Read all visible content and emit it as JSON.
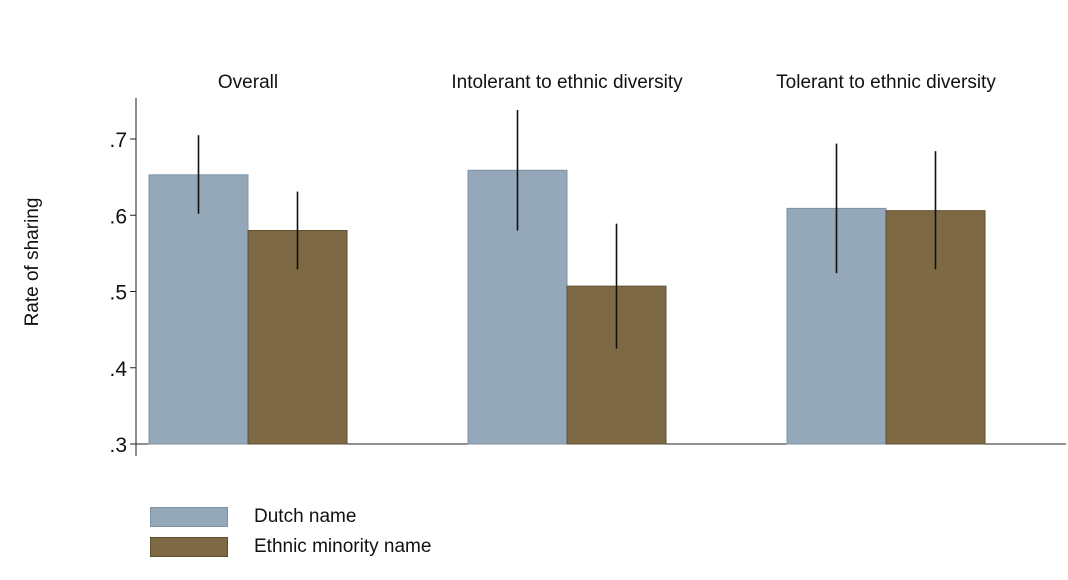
{
  "chart_data": {
    "type": "bar",
    "ylabel": "Rate of sharing",
    "ylim": [
      0.3,
      0.75
    ],
    "yticks": [
      0.3,
      0.4,
      0.5,
      0.6,
      0.7
    ],
    "ytick_labels": [
      ".3",
      ".4",
      ".5",
      ".6",
      ".7"
    ],
    "grid": false,
    "legend_position": "bottom-left",
    "categories": [
      "Overall",
      "Intolerant to ethnic diversity",
      "Tolerant to ethnic diversity"
    ],
    "series": [
      {
        "name": "Dutch name",
        "color": "#94a8b9",
        "edge": "#7d93a6",
        "values": [
          0.653,
          0.659,
          0.609
        ],
        "ci_low": [
          0.602,
          0.58,
          0.524
        ],
        "ci_high": [
          0.705,
          0.738,
          0.694
        ]
      },
      {
        "name": "Ethnic minority name",
        "color": "#7d6a44",
        "edge": "#5e4f30",
        "values": [
          0.58,
          0.507,
          0.606
        ],
        "ci_low": [
          0.529,
          0.425,
          0.529
        ],
        "ci_high": [
          0.631,
          0.589,
          0.684
        ]
      }
    ]
  }
}
